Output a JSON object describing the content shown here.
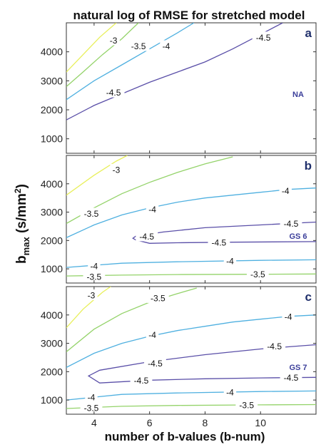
{
  "chart_data": {
    "type": "contour",
    "title": "natural log of RMSE for stretched model",
    "xlabel": "number of b-values (b-num)",
    "ylabel_main": "b",
    "ylabel_sub": "max",
    "ylabel_units": "(s/mm",
    "ylabel_sup": "2",
    "ylabel_close": ")",
    "xlim": [
      3,
      12
    ],
    "xticks": [
      "4",
      "6",
      "8",
      "10"
    ],
    "xtick_values": [
      4,
      6,
      8,
      10
    ],
    "ylim": [
      500,
      5000
    ],
    "yticks": [
      "1000",
      "2000",
      "3000",
      "4000"
    ],
    "ytick_values": [
      1000,
      2000,
      3000,
      4000
    ],
    "level_colors": {
      "-3": "#e8ef5a",
      "-3.5": "#94d36a",
      "-4": "#4fb0e0",
      "-4.5": "#5a4fa8"
    },
    "panels": [
      {
        "label": "a",
        "note": "NA",
        "contours": [
          {
            "level": "-3",
            "points": [
              [
                3.0,
                3300
              ],
              [
                3.5,
                3800
              ],
              [
                4.2,
                4500
              ],
              [
                4.8,
                5000
              ]
            ]
          },
          {
            "level": "-3.5",
            "points": [
              [
                3.0,
                2800
              ],
              [
                3.6,
                3300
              ],
              [
                4.3,
                3900
              ],
              [
                5.0,
                4450
              ],
              [
                5.6,
                5000
              ]
            ]
          },
          {
            "level": "-4",
            "points": [
              [
                3.0,
                2350
              ],
              [
                4.0,
                3000
              ],
              [
                5.0,
                3550
              ],
              [
                6.0,
                4100
              ],
              [
                7.0,
                4650
              ],
              [
                7.6,
                5000
              ]
            ]
          },
          {
            "level": "-4.5",
            "points": [
              [
                3.0,
                1650
              ],
              [
                4.0,
                2150
              ],
              [
                5.0,
                2550
              ],
              [
                6.0,
                2950
              ],
              [
                7.0,
                3300
              ],
              [
                8.0,
                3650
              ],
              [
                9.0,
                4100
              ],
              [
                10.0,
                4600
              ],
              [
                10.8,
                5000
              ]
            ]
          }
        ],
        "labels": [
          {
            "text": "-3",
            "x": 4.7,
            "y": 4400
          },
          {
            "text": "-3.5",
            "x": 5.6,
            "y": 4200
          },
          {
            "text": "-4",
            "x": 6.6,
            "y": 4200
          },
          {
            "text": "-4.5",
            "x": 10.1,
            "y": 4500
          },
          {
            "text": "-4.5",
            "x": 4.7,
            "y": 2600
          }
        ]
      },
      {
        "label": "b",
        "note": "GS 6",
        "contours": [
          {
            "level": "-3",
            "points": [
              [
                3.0,
                3600
              ],
              [
                4.0,
                4300
              ],
              [
                4.8,
                4800
              ],
              [
                5.2,
                5000
              ]
            ]
          },
          {
            "level": "-3.5",
            "points": [
              [
                3.0,
                2600
              ],
              [
                4.0,
                3150
              ],
              [
                5.0,
                3650
              ],
              [
                6.0,
                4050
              ],
              [
                7.0,
                4400
              ],
              [
                8.0,
                4700
              ],
              [
                9.0,
                4950
              ]
            ]
          },
          {
            "level": "-4",
            "points": [
              [
                3.0,
                2100
              ],
              [
                4.0,
                2550
              ],
              [
                5.0,
                2900
              ],
              [
                6.0,
                3150
              ],
              [
                7.0,
                3350
              ],
              [
                8.0,
                3500
              ],
              [
                9.0,
                3600
              ],
              [
                10.0,
                3700
              ],
              [
                11.0,
                3800
              ],
              [
                12.0,
                3850
              ]
            ]
          },
          {
            "level": "-4.5",
            "points": [
              [
                12.0,
                2650
              ],
              [
                10.0,
                2550
              ],
              [
                8.0,
                2450
              ],
              [
                6.5,
                2300
              ],
              [
                5.5,
                2150
              ],
              [
                5.4,
                2080
              ],
              [
                5.5,
                2020
              ],
              [
                6.0,
                1900
              ],
              [
                7.0,
                1920
              ],
              [
                9.0,
                1940
              ],
              [
                12.0,
                1960
              ]
            ]
          },
          {
            "level": "-4",
            "points": [
              [
                3.0,
                1050
              ],
              [
                5.0,
                1200
              ],
              [
                7.0,
                1250
              ],
              [
                10.0,
                1300
              ],
              [
                12.0,
                1320
              ]
            ]
          },
          {
            "level": "-3.5",
            "points": [
              [
                3.0,
                750
              ],
              [
                5.0,
                780
              ],
              [
                7.0,
                800
              ],
              [
                10.0,
                810
              ],
              [
                12.0,
                820
              ]
            ]
          }
        ],
        "labels": [
          {
            "text": "-3",
            "x": 4.8,
            "y": 4500
          },
          {
            "text": "-3.5",
            "x": 3.9,
            "y": 2950
          },
          {
            "text": "-4",
            "x": 6.1,
            "y": 3100
          },
          {
            "text": "-4",
            "x": 10.9,
            "y": 3750
          },
          {
            "text": "-4.5",
            "x": 11.1,
            "y": 2600
          },
          {
            "text": "-4.5",
            "x": 5.9,
            "y": 2150
          },
          {
            "text": "-4.5",
            "x": 8.5,
            "y": 1930
          },
          {
            "text": "-4",
            "x": 4.0,
            "y": 1100
          },
          {
            "text": "-4",
            "x": 8.9,
            "y": 1280
          },
          {
            "text": "-3.5",
            "x": 4.0,
            "y": 730
          },
          {
            "text": "-3.5",
            "x": 9.9,
            "y": 810
          }
        ]
      },
      {
        "label": "c",
        "note": "GS 7",
        "contours": [
          {
            "level": "-3",
            "points": [
              [
                3.0,
                3550
              ],
              [
                3.6,
                4200
              ],
              [
                4.3,
                4800
              ],
              [
                4.6,
                5000
              ]
            ]
          },
          {
            "level": "-3.5",
            "points": [
              [
                3.0,
                2700
              ],
              [
                4.0,
                3500
              ],
              [
                5.0,
                4050
              ],
              [
                6.0,
                4450
              ],
              [
                7.0,
                4750
              ],
              [
                7.7,
                4950
              ]
            ]
          },
          {
            "level": "-4",
            "points": [
              [
                3.0,
                2150
              ],
              [
                4.0,
                2650
              ],
              [
                5.0,
                3000
              ],
              [
                6.0,
                3250
              ],
              [
                7.0,
                3450
              ],
              [
                8.0,
                3600
              ],
              [
                9.0,
                3750
              ],
              [
                10.0,
                3850
              ],
              [
                11.0,
                3950
              ],
              [
                12.0,
                4000
              ]
            ]
          },
          {
            "level": "-4.5",
            "points": [
              [
                12.0,
                2950
              ],
              [
                10.0,
                2800
              ],
              [
                8.0,
                2600
              ],
              [
                6.0,
                2350
              ],
              [
                4.2,
                2050
              ],
              [
                3.8,
                1850
              ],
              [
                4.2,
                1600
              ],
              [
                6.0,
                1700
              ],
              [
                8.0,
                1750
              ],
              [
                10.0,
                1780
              ],
              [
                12.0,
                1800
              ]
            ]
          },
          {
            "level": "-4",
            "points": [
              [
                3.0,
                1000
              ],
              [
                5.0,
                1200
              ],
              [
                7.0,
                1250
              ],
              [
                10.0,
                1300
              ],
              [
                12.0,
                1320
              ]
            ]
          },
          {
            "level": "-3.5",
            "points": [
              [
                3.0,
                700
              ],
              [
                5.0,
                780
              ],
              [
                7.0,
                810
              ],
              [
                10.0,
                830
              ],
              [
                12.0,
                840
              ]
            ]
          }
        ],
        "labels": [
          {
            "text": "-3",
            "x": 3.9,
            "y": 4700
          },
          {
            "text": "-3.5",
            "x": 6.3,
            "y": 4600
          },
          {
            "text": "-4",
            "x": 6.1,
            "y": 3300
          },
          {
            "text": "-4",
            "x": 11.0,
            "y": 3950
          },
          {
            "text": "-4.5",
            "x": 6.2,
            "y": 2300
          },
          {
            "text": "-4.5",
            "x": 10.5,
            "y": 2900
          },
          {
            "text": "-4.5",
            "x": 5.7,
            "y": 1700
          },
          {
            "text": "-4.5",
            "x": 11.1,
            "y": 1800
          },
          {
            "text": "-4",
            "x": 3.9,
            "y": 1100
          },
          {
            "text": "-4",
            "x": 8.9,
            "y": 1280
          },
          {
            "text": "-3.5",
            "x": 3.9,
            "y": 730
          },
          {
            "text": "-3.5",
            "x": 9.5,
            "y": 830
          }
        ]
      }
    ]
  }
}
